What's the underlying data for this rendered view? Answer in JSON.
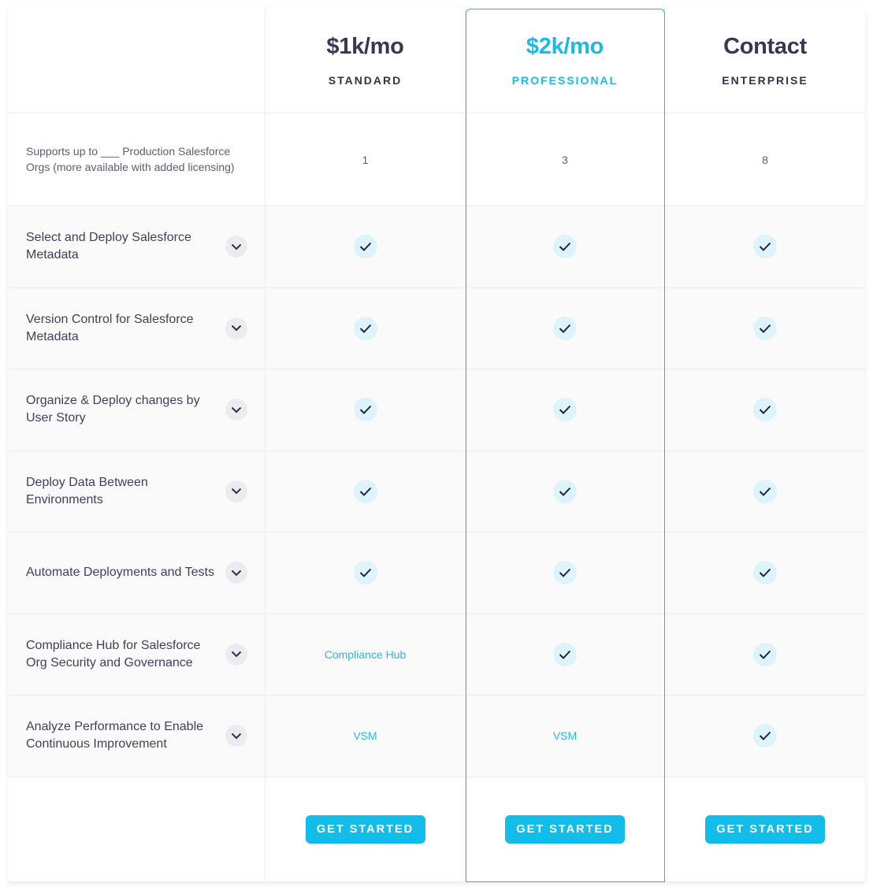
{
  "colors": {
    "accent": "#1ab9e6",
    "button": "#12bde9",
    "text": "#353a4f",
    "check_bg": "#def4fc"
  },
  "plans": [
    {
      "price": "$1k/mo",
      "tier": "STANDARD",
      "cta": "GET STARTED",
      "highlighted": false
    },
    {
      "price": "$2k/mo",
      "tier": "PROFESSIONAL",
      "cta": "GET STARTED",
      "highlighted": true
    },
    {
      "price": "Contact",
      "tier": "ENTERPRISE",
      "cta": "GET STARTED",
      "highlighted": false
    }
  ],
  "orgs": {
    "label": "Supports up to ___ Production Salesforce Orgs (more available with added licensing)",
    "values": [
      "1",
      "3",
      "8"
    ]
  },
  "features": [
    {
      "label": "Select and Deploy Salesforce Metadata",
      "values": [
        "check",
        "check",
        "check"
      ]
    },
    {
      "label": "Version Control for Salesforce Metadata",
      "values": [
        "check",
        "check",
        "check"
      ]
    },
    {
      "label": "Organize & Deploy changes by User Story",
      "values": [
        "check",
        "check",
        "check"
      ]
    },
    {
      "label": "Deploy Data Between Environments",
      "values": [
        "check",
        "check",
        "check"
      ]
    },
    {
      "label": "Automate Deployments and Tests",
      "values": [
        "check",
        "check",
        "check"
      ]
    },
    {
      "label": "Compliance Hub for Salesforce Org Security and Governance",
      "values": [
        "Compliance Hub",
        "check",
        "check"
      ]
    },
    {
      "label": "Analyze Performance to Enable Continuous Improvement",
      "values": [
        "VSM",
        "VSM",
        "check"
      ]
    }
  ]
}
